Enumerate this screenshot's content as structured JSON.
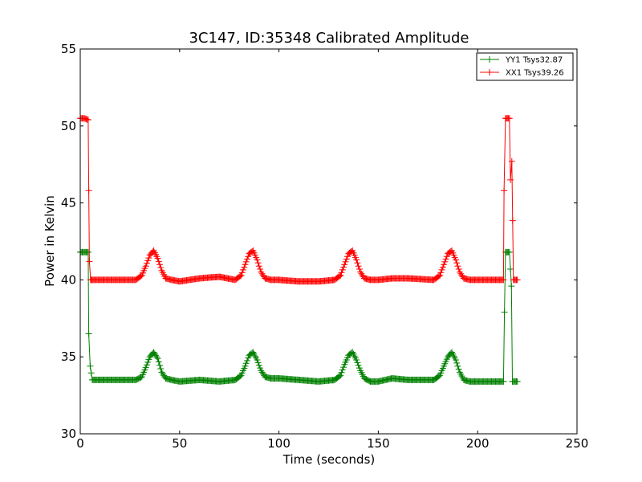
{
  "chart_data": {
    "type": "line",
    "title": "3C147, ID:35348 Calibrated Amplitude",
    "xlabel": "Time (seconds)",
    "ylabel": "Power in Kelvin",
    "xlim": [
      0,
      250
    ],
    "ylim": [
      30,
      55
    ],
    "xticks": [
      "0",
      "50",
      "100",
      "150",
      "200",
      "250"
    ],
    "yticks": [
      "30",
      "35",
      "40",
      "45",
      "50",
      "55"
    ],
    "grid": false,
    "legend_position": "top-right",
    "marker": "plus",
    "series": [
      {
        "name": "YY1 Tsys32.87",
        "color": "#008000",
        "x": [
          0,
          2,
          4,
          4.3,
          5,
          6,
          10,
          20,
          28,
          31,
          33,
          35,
          37,
          39,
          41,
          43,
          46,
          50,
          60,
          70,
          78,
          81,
          83,
          85,
          87,
          89,
          91,
          93,
          96,
          100,
          110,
          120,
          128,
          131,
          133,
          135,
          137,
          139,
          141,
          143,
          146,
          150,
          157,
          165,
          178,
          181,
          183,
          185,
          187,
          189,
          191,
          193,
          196,
          200,
          205,
          213,
          213.5,
          214,
          215,
          216,
          217,
          217.5,
          218,
          220
        ],
        "y": [
          41.8,
          41.8,
          41.8,
          36.5,
          34.4,
          33.5,
          33.5,
          33.5,
          33.5,
          33.7,
          34.3,
          35.0,
          35.3,
          34.9,
          34.0,
          33.6,
          33.5,
          33.4,
          33.5,
          33.4,
          33.5,
          33.8,
          34.4,
          35.1,
          35.3,
          34.8,
          34.1,
          33.7,
          33.6,
          33.6,
          33.5,
          33.4,
          33.5,
          33.8,
          34.5,
          35.1,
          35.3,
          34.8,
          34.1,
          33.6,
          33.4,
          33.4,
          33.6,
          33.5,
          33.5,
          33.8,
          34.4,
          35.0,
          35.3,
          34.8,
          34.0,
          33.5,
          33.4,
          33.4,
          33.4,
          33.4,
          37.9,
          41.8,
          41.8,
          41.8,
          39.6,
          33.4,
          33.4,
          33.4
        ]
      },
      {
        "name": "XX1 Tsys39.26",
        "color": "#ff0000",
        "x": [
          0,
          2,
          4,
          4.3,
          4.6,
          5.2,
          6,
          10,
          20,
          28,
          31,
          33,
          35,
          37,
          39,
          41,
          43,
          46,
          50,
          60,
          70,
          78,
          81,
          83,
          85,
          87,
          89,
          91,
          93,
          96,
          100,
          110,
          120,
          128,
          131,
          133,
          135,
          137,
          139,
          141,
          143,
          146,
          150,
          157,
          165,
          178,
          181,
          183,
          185,
          187,
          189,
          191,
          193,
          196,
          200,
          205,
          213,
          213.3,
          214,
          215,
          216,
          216.5,
          217.2,
          218,
          220
        ],
        "y": [
          50.5,
          50.5,
          50.4,
          45.8,
          41.2,
          40.0,
          40.0,
          40.0,
          40.0,
          40.0,
          40.3,
          40.9,
          41.6,
          41.9,
          41.4,
          40.6,
          40.1,
          40.0,
          39.9,
          40.1,
          40.2,
          40.0,
          40.3,
          41.0,
          41.7,
          41.9,
          41.3,
          40.5,
          40.1,
          40.0,
          40.0,
          39.9,
          39.9,
          40.0,
          40.3,
          41.0,
          41.7,
          41.9,
          41.3,
          40.5,
          40.1,
          40.0,
          40.0,
          40.1,
          40.1,
          40.0,
          40.3,
          41.0,
          41.7,
          41.9,
          41.3,
          40.5,
          40.1,
          40.0,
          40.0,
          40.0,
          40.0,
          45.8,
          50.5,
          50.5,
          50.5,
          46.5,
          47.7,
          40.0,
          40.0
        ]
      }
    ]
  }
}
